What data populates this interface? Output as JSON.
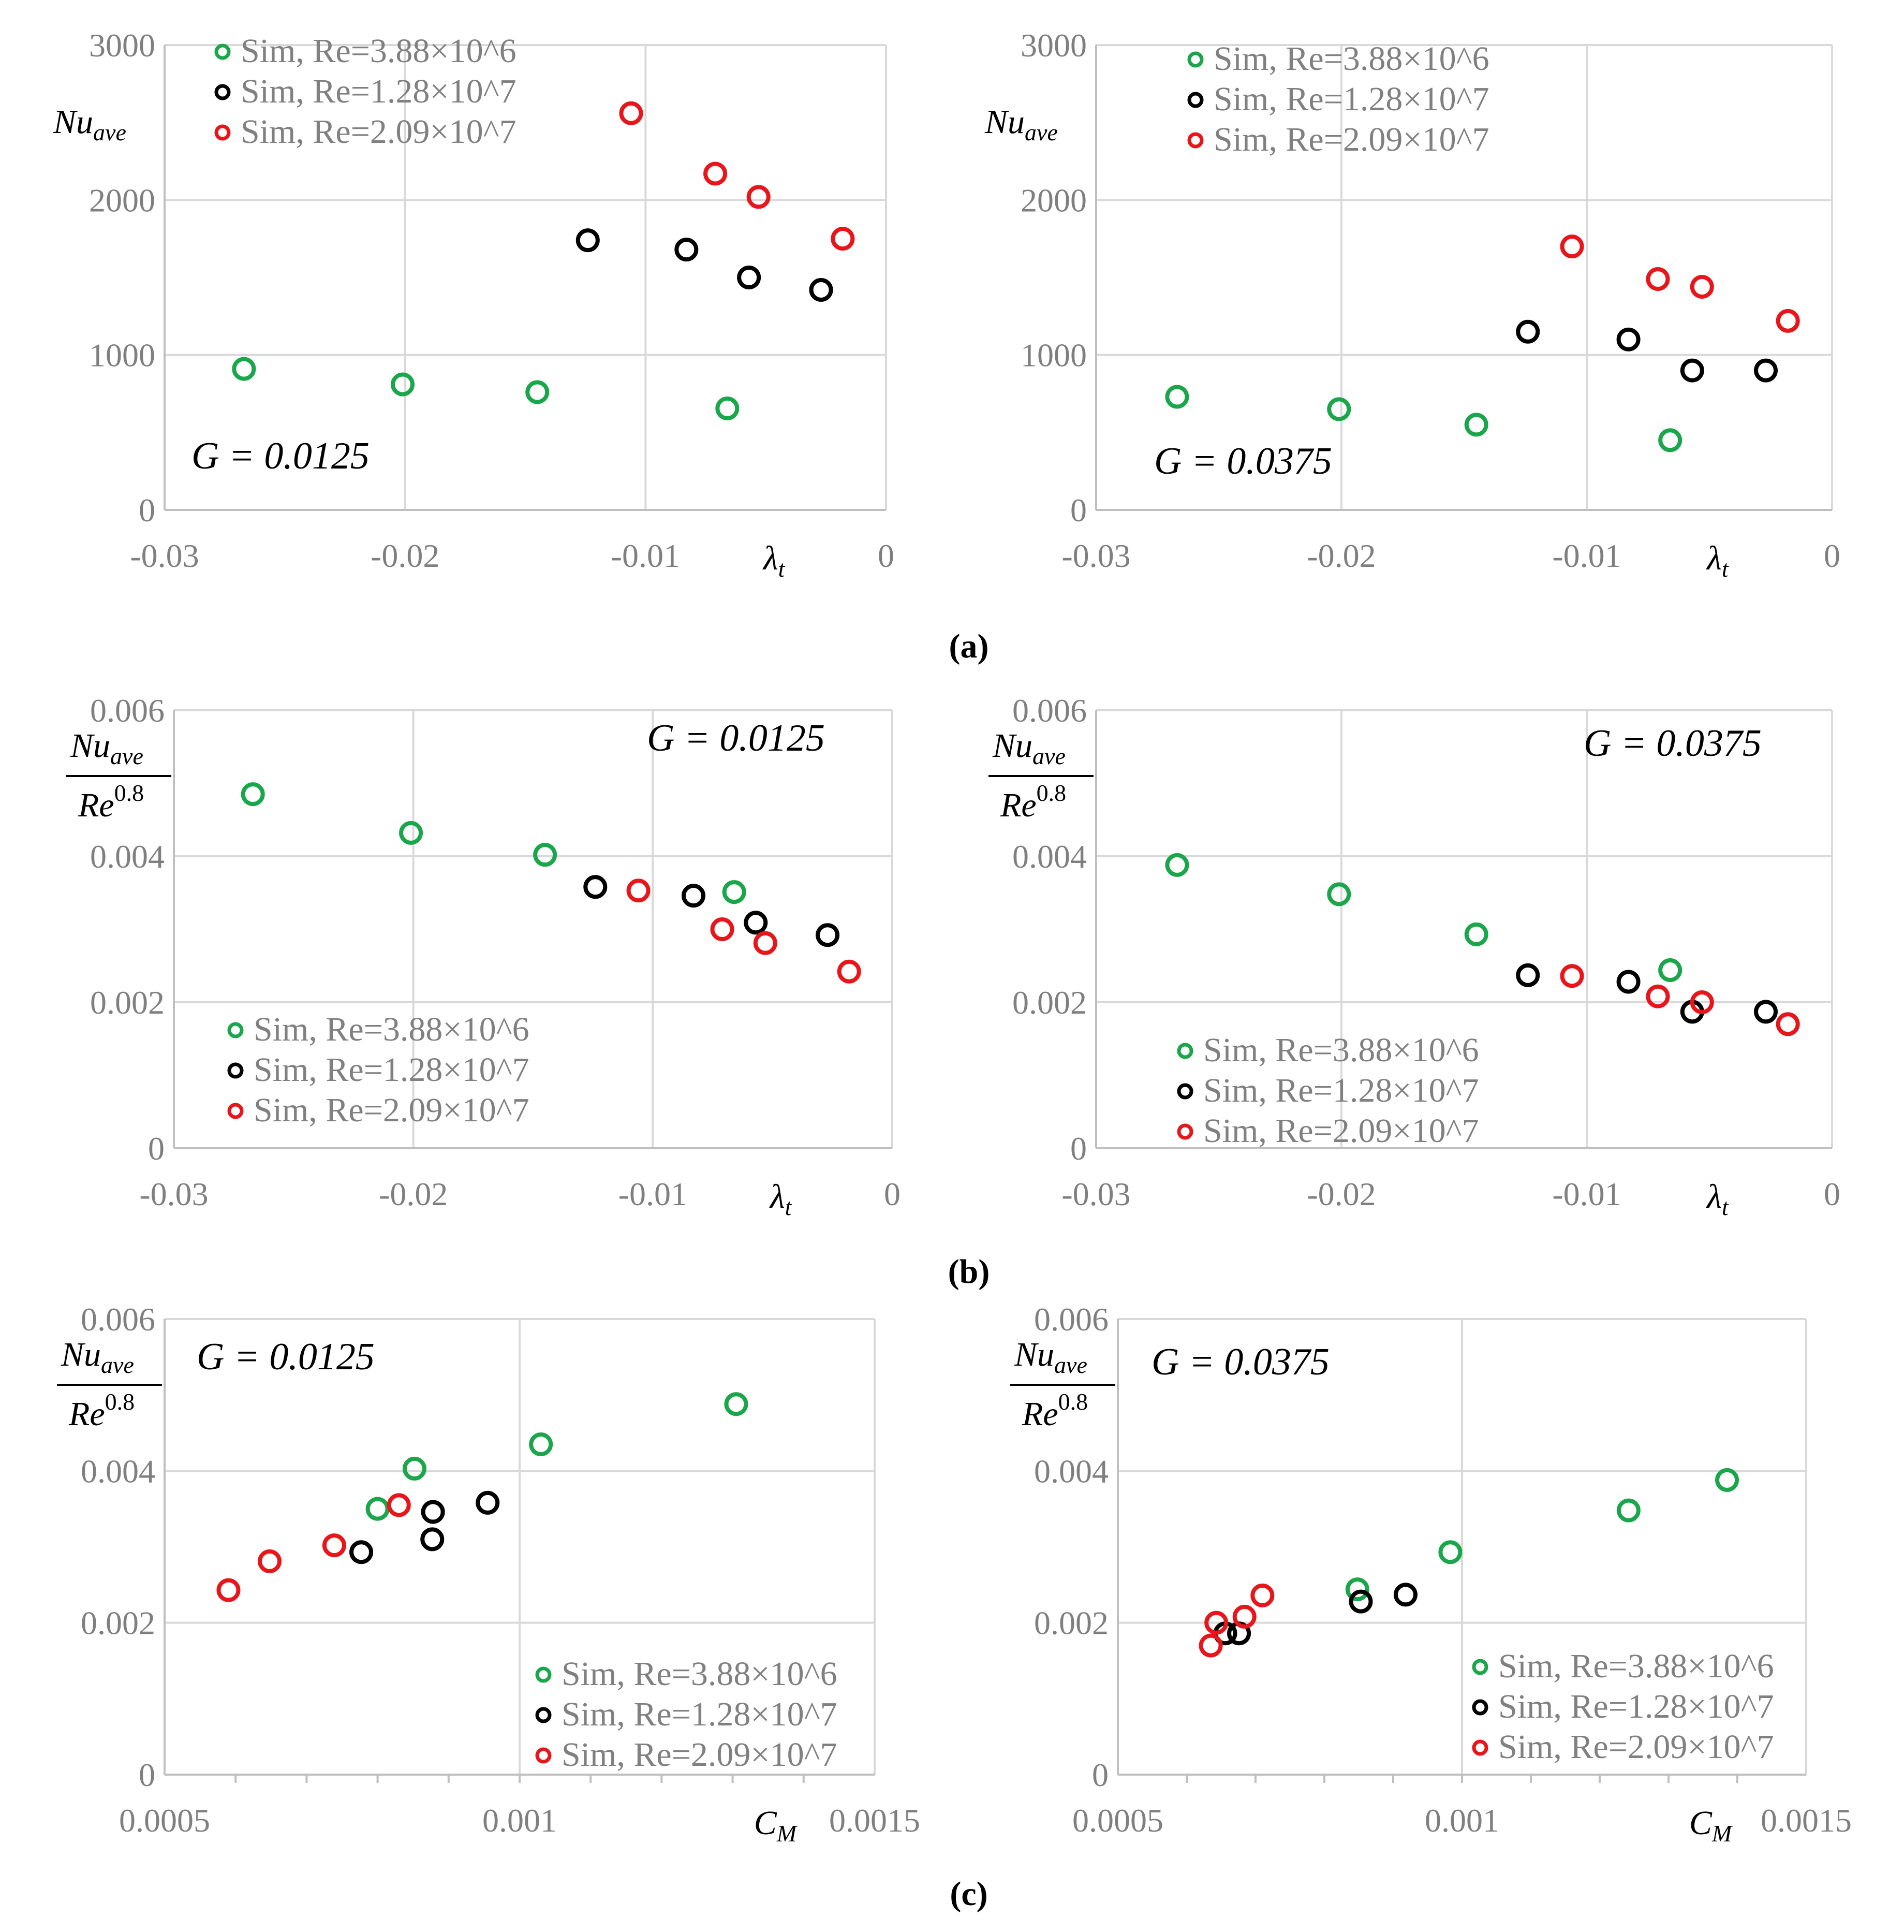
{
  "panel_labels": [
    "(a)",
    "(b)",
    "(c)"
  ],
  "colors": {
    "green": "#1aa64a",
    "black": "#000000",
    "red": "#e8161b",
    "grid": "#d9d9d9",
    "tick_text": "#7f7f7f",
    "legend_text": "#808080"
  },
  "chart_data": [
    {
      "id": "a-left",
      "type": "scatter",
      "xlabel": "λ",
      "xlabel_sub": "t",
      "ylabel": "Nu",
      "ylabel_sub": "ave",
      "ylabel_frac": false,
      "xlim": [
        -0.03,
        0
      ],
      "ylim": [
        0,
        3000
      ],
      "xticks": [
        "-0.03",
        "-0.02",
        "-0.01",
        "0"
      ],
      "yticks": [
        "0",
        "1000",
        "2000",
        "3000"
      ],
      "annotation": "G = 0.0125",
      "series": [
        {
          "name": "Sim, Re=3.88×10^6",
          "color": "green",
          "x": [
            -0.0267,
            -0.0201,
            -0.0145,
            -0.0066
          ],
          "y": [
            910,
            810,
            760,
            655
          ]
        },
        {
          "name": "Sim, Re=1.28×10^7",
          "color": "black",
          "x": [
            -0.0124,
            -0.0083,
            -0.0057,
            -0.0027
          ],
          "y": [
            1740,
            1680,
            1500,
            1420
          ]
        },
        {
          "name": "Sim, Re=2.09×10^7",
          "color": "red",
          "x": [
            -0.0106,
            -0.0071,
            -0.0053,
            -0.0018
          ],
          "y": [
            2560,
            2170,
            2020,
            1750
          ]
        }
      ]
    },
    {
      "id": "a-right",
      "type": "scatter",
      "xlabel": "λ",
      "xlabel_sub": "t",
      "ylabel": "Nu",
      "ylabel_sub": "ave",
      "ylabel_frac": false,
      "xlim": [
        -0.03,
        0
      ],
      "ylim": [
        0,
        3000
      ],
      "xticks": [
        "-0.03",
        "-0.02",
        "-0.01",
        "0"
      ],
      "yticks": [
        "0",
        "1000",
        "2000",
        "3000"
      ],
      "annotation": "G = 0.0375",
      "series": [
        {
          "name": "Sim, Re=3.88×10^6",
          "color": "green",
          "x": [
            -0.0267,
            -0.0201,
            -0.0145,
            -0.0066
          ],
          "y": [
            730,
            650,
            550,
            450
          ]
        },
        {
          "name": "Sim, Re=1.28×10^7",
          "color": "black",
          "x": [
            -0.0124,
            -0.0083,
            -0.0057,
            -0.0027
          ],
          "y": [
            1150,
            1100,
            900,
            900
          ]
        },
        {
          "name": "Sim, Re=2.09×10^7",
          "color": "red",
          "x": [
            -0.0106,
            -0.0071,
            -0.0053,
            -0.0018
          ],
          "y": [
            1700,
            1490,
            1440,
            1220
          ]
        }
      ]
    },
    {
      "id": "b-left",
      "type": "scatter",
      "xlabel": "λ",
      "xlabel_sub": "t",
      "ylabel": "Nu",
      "ylabel_sub": "ave",
      "ylabel_frac": true,
      "ylabel_den": "Re",
      "ylabel_den_sup": "0.8",
      "xlim": [
        -0.03,
        0
      ],
      "ylim": [
        0,
        0.006
      ],
      "xticks": [
        "-0.03",
        "-0.02",
        "-0.01",
        "0"
      ],
      "yticks": [
        "0",
        "0.002",
        "0.004",
        "0.006"
      ],
      "annotation": "G = 0.0125",
      "series": [
        {
          "name": "Sim, Re=3.88×10^6",
          "color": "green",
          "x": [
            -0.0267,
            -0.0201,
            -0.0145,
            -0.0066
          ],
          "y": [
            0.00485,
            0.00432,
            0.00402,
            0.00351
          ]
        },
        {
          "name": "Sim, Re=1.28×10^7",
          "color": "black",
          "x": [
            -0.0124,
            -0.0083,
            -0.0057,
            -0.0027
          ],
          "y": [
            0.00358,
            0.00346,
            0.00309,
            0.00292
          ]
        },
        {
          "name": "Sim, Re=2.09×10^7",
          "color": "red",
          "x": [
            -0.0106,
            -0.0071,
            -0.0053,
            -0.0018
          ],
          "y": [
            0.00353,
            0.003,
            0.00281,
            0.00242
          ]
        }
      ]
    },
    {
      "id": "b-right",
      "type": "scatter",
      "xlabel": "λ",
      "xlabel_sub": "t",
      "ylabel": "Nu",
      "ylabel_sub": "ave",
      "ylabel_frac": true,
      "ylabel_den": "Re",
      "ylabel_den_sup": "0.8",
      "xlim": [
        -0.03,
        0
      ],
      "ylim": [
        0,
        0.006
      ],
      "xticks": [
        "-0.03",
        "-0.02",
        "-0.01",
        "0"
      ],
      "yticks": [
        "0",
        "0.002",
        "0.004",
        "0.006"
      ],
      "annotation": "G = 0.0375",
      "series": [
        {
          "name": "Sim, Re=3.88×10^6",
          "color": "green",
          "x": [
            -0.0267,
            -0.0201,
            -0.0145,
            -0.0066
          ],
          "y": [
            0.00388,
            0.00348,
            0.00293,
            0.00244
          ]
        },
        {
          "name": "Sim, Re=1.28×10^7",
          "color": "black",
          "x": [
            -0.0124,
            -0.0083,
            -0.0057,
            -0.0027
          ],
          "y": [
            0.00237,
            0.00228,
            0.00187,
            0.00187
          ]
        },
        {
          "name": "Sim, Re=2.09×10^7",
          "color": "red",
          "x": [
            -0.0106,
            -0.0071,
            -0.0053,
            -0.0018
          ],
          "y": [
            0.00236,
            0.00208,
            0.002,
            0.0017
          ]
        }
      ]
    },
    {
      "id": "c-left",
      "type": "scatter",
      "xlabel": "C",
      "xlabel_sub": "M",
      "ylabel": "Nu",
      "ylabel_sub": "ave",
      "ylabel_frac": true,
      "ylabel_den": "Re",
      "ylabel_den_sup": "0.8",
      "xlim": [
        0.0005,
        0.0015
      ],
      "ylim": [
        0,
        0.006
      ],
      "xticks": [
        "0.0005",
        "0.001",
        "0.0015"
      ],
      "yticks": [
        "0",
        "0.002",
        "0.004",
        "0.006"
      ],
      "annotation": "G = 0.0125",
      "series": [
        {
          "name": "Sim, Re=3.88×10^6",
          "color": "green",
          "x": [
            0.001305,
            0.00103,
            0.000852,
            0.0008
          ],
          "y": [
            0.00488,
            0.00435,
            0.00403,
            0.0035
          ]
        },
        {
          "name": "Sim, Re=1.28×10^7",
          "color": "black",
          "x": [
            0.000955,
            0.000878,
            0.000877,
            0.000777
          ],
          "y": [
            0.00358,
            0.00346,
            0.0031,
            0.00293
          ]
        },
        {
          "name": "Sim, Re=2.09×10^7",
          "color": "red",
          "x": [
            0.00083,
            0.000739,
            0.000648,
            0.00059
          ],
          "y": [
            0.00355,
            0.00302,
            0.00281,
            0.00243
          ]
        }
      ]
    },
    {
      "id": "c-right",
      "type": "scatter",
      "xlabel": "C",
      "xlabel_sub": "M",
      "ylabel": "Nu",
      "ylabel_sub": "ave",
      "ylabel_frac": true,
      "ylabel_den": "Re",
      "ylabel_den_sup": "0.8",
      "xlim": [
        0.0005,
        0.0015
      ],
      "ylim": [
        0,
        0.006
      ],
      "xticks": [
        "0.0005",
        "0.001",
        "0.0015"
      ],
      "yticks": [
        "0",
        "0.002",
        "0.004",
        "0.006"
      ],
      "annotation": "G = 0.0375",
      "series": [
        {
          "name": "Sim, Re=3.88×10^6",
          "color": "green",
          "x": [
            0.001385,
            0.001242,
            0.000983,
            0.000848
          ],
          "y": [
            0.00388,
            0.00348,
            0.00293,
            0.00244
          ]
        },
        {
          "name": "Sim, Re=1.28×10^7",
          "color": "black",
          "x": [
            0.000918,
            0.000853,
            0.000676,
            0.000656
          ],
          "y": [
            0.00237,
            0.00228,
            0.00186,
            0.00186
          ]
        },
        {
          "name": "Sim, Re=2.09×10^7",
          "color": "red",
          "x": [
            0.00071,
            0.000684,
            0.000643,
            0.000635
          ],
          "y": [
            0.00236,
            0.00208,
            0.002,
            0.0017
          ]
        }
      ]
    }
  ]
}
